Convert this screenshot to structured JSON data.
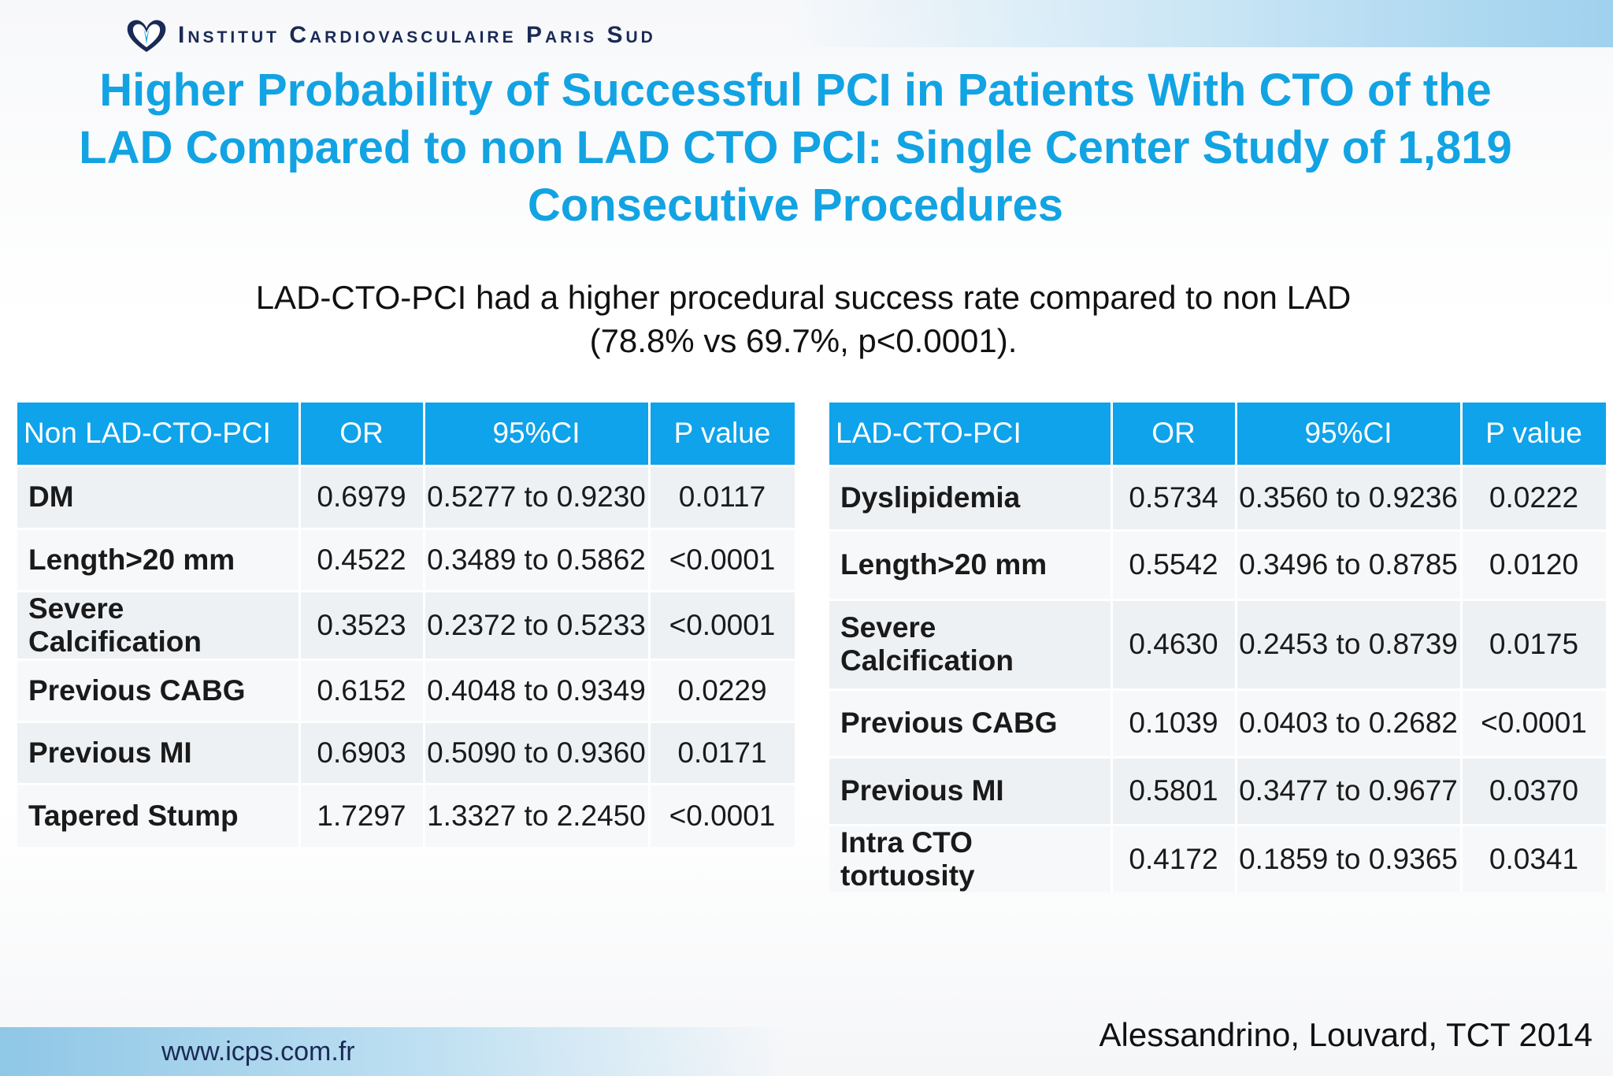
{
  "header": {
    "institution": "Institut Cardiovasculaire Paris Sud",
    "url": "www.icps.com.fr"
  },
  "title": "Higher Probability of Successful PCI in Patients With CTO of the LAD Compared to non LAD CTO PCI: Single Center Study of 1,819 Consecutive Procedures",
  "subtitle_line1": "LAD-CTO-PCI had a higher procedural success rate compared to non LAD",
  "subtitle_line2": "(78.8% vs 69.7%, p<0.0001).",
  "left_table": {
    "headers": [
      "Non LAD-CTO-PCI",
      "OR",
      "95%CI",
      "P value"
    ],
    "rows": [
      [
        "DM",
        "0.6979",
        "0.5277 to 0.9230",
        "0.0117"
      ],
      [
        "Length>20 mm",
        "0.4522",
        "0.3489 to 0.5862",
        "<0.0001"
      ],
      [
        "Severe Calcification",
        "0.3523",
        "0.2372 to 0.5233",
        "<0.0001"
      ],
      [
        "Previous CABG",
        "0.6152",
        "0.4048 to 0.9349",
        "0.0229"
      ],
      [
        "Previous MI",
        "0.6903",
        "0.5090 to 0.9360",
        "0.0171"
      ],
      [
        "Tapered Stump",
        "1.7297",
        "1.3327 to 2.2450",
        "<0.0001"
      ]
    ]
  },
  "right_table": {
    "headers": [
      "LAD-CTO-PCI",
      "OR",
      "95%CI",
      "P value"
    ],
    "rows": [
      [
        "Dyslipidemia",
        "0.5734",
        "0.3560 to 0.9236",
        "0.0222"
      ],
      [
        "Length>20 mm",
        "0.5542",
        "0.3496 to 0.8785",
        "0.0120"
      ],
      [
        "Severe Calcification",
        "0.4630",
        "0.2453 to 0.8739",
        "0.0175"
      ],
      [
        "Previous CABG",
        "0.1039",
        "0.0403 to 0.2682",
        "<0.0001"
      ],
      [
        "Previous MI",
        "0.5801",
        "0.3477 to 0.9677",
        "0.0370"
      ],
      [
        "Intra CTO tortuosity",
        "0.4172",
        "0.1859 to 0.9365",
        "0.0341"
      ]
    ]
  },
  "citation": "Alessandrino, Louvard, TCT 2014",
  "colors": {
    "accent": "#12a3e3",
    "header_fill": "#0ea3ea",
    "navy": "#1b2a55"
  }
}
